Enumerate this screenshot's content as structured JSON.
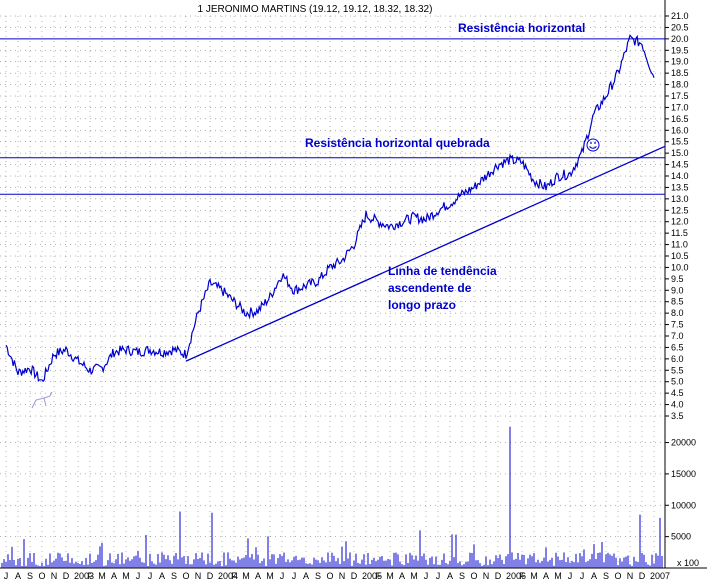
{
  "chart_data": {
    "type": "line",
    "title": "1 JERONIMO MARTINS (19.12, 19.12, 18.32, 18.32)",
    "colors": {
      "price": "#0000cc",
      "lines": "#0000cc",
      "volume": "#0000cc",
      "grid": "#000000"
    },
    "ylim": [
      3.5,
      21.0
    ],
    "y_ticks": [
      "3.5",
      "4.0",
      "4.5",
      "5.0",
      "5.5",
      "6.0",
      "6.5",
      "7.0",
      "7.5",
      "8.0",
      "8.5",
      "9.0",
      "9.5",
      "10.0",
      "10.5",
      "11.0",
      "11.5",
      "12.0",
      "12.5",
      "13.0",
      "13.5",
      "14.0",
      "14.5",
      "15.0",
      "15.5",
      "16.0",
      "16.5",
      "17.0",
      "17.5",
      "18.0",
      "18.5",
      "19.0",
      "19.5",
      "20.0",
      "20.5",
      "21.0"
    ],
    "volume_ticks": [
      "5000",
      "10000",
      "15000",
      "20000"
    ],
    "volume_unit_label": "x 100",
    "volume_ylim": [
      0,
      22000
    ],
    "x_labels": [
      "J",
      "A",
      "S",
      "O",
      "N",
      "D",
      "2003",
      "F",
      "M",
      "A",
      "M",
      "J",
      "J",
      "A",
      "S",
      "O",
      "N",
      "D",
      "2004",
      "F",
      "M",
      "A",
      "M",
      "J",
      "J",
      "A",
      "S",
      "O",
      "N",
      "D",
      "2005",
      "F",
      "M",
      "A",
      "M",
      "J",
      "J",
      "A",
      "S",
      "O",
      "N",
      "D",
      "2006",
      "F",
      "M",
      "A",
      "M",
      "J",
      "J",
      "A",
      "S",
      "O",
      "N",
      "D",
      "2007"
    ],
    "price_series": [
      [
        "2002-07",
        6.6
      ],
      [
        "2002-08",
        5.4
      ],
      [
        "2002-09",
        5.6
      ],
      [
        "2002-10",
        5.0
      ],
      [
        "2002-11",
        6.2
      ],
      [
        "2002-12",
        6.4
      ],
      [
        "2003-01",
        5.9
      ],
      [
        "2003-02",
        5.5
      ],
      [
        "2003-03",
        5.6
      ],
      [
        "2003-04",
        6.3
      ],
      [
        "2003-05",
        6.4
      ],
      [
        "2003-06",
        6.3
      ],
      [
        "2003-07",
        6.4
      ],
      [
        "2003-08",
        6.3
      ],
      [
        "2003-09",
        6.4
      ],
      [
        "2003-10",
        6.2
      ],
      [
        "2003-11",
        8.0
      ],
      [
        "2003-12",
        9.3
      ],
      [
        "2004-01",
        9.0
      ],
      [
        "2004-02",
        8.5
      ],
      [
        "2004-03",
        8.0
      ],
      [
        "2004-04",
        8.1
      ],
      [
        "2004-05",
        8.7
      ],
      [
        "2004-06",
        9.7
      ],
      [
        "2004-07",
        9.0
      ],
      [
        "2004-08",
        9.2
      ],
      [
        "2004-09",
        9.4
      ],
      [
        "2004-10",
        10.0
      ],
      [
        "2004-11",
        10.3
      ],
      [
        "2004-12",
        11.0
      ],
      [
        "2005-01",
        12.3
      ],
      [
        "2005-02",
        12.0
      ],
      [
        "2005-03",
        11.8
      ],
      [
        "2005-04",
        12.0
      ],
      [
        "2005-05",
        12.2
      ],
      [
        "2005-06",
        12.1
      ],
      [
        "2005-07",
        12.5
      ],
      [
        "2005-08",
        12.8
      ],
      [
        "2005-09",
        13.2
      ],
      [
        "2005-10",
        13.5
      ],
      [
        "2005-11",
        14.0
      ],
      [
        "2005-12",
        14.5
      ],
      [
        "2006-01",
        14.7
      ],
      [
        "2006-02",
        14.6
      ],
      [
        "2006-03",
        13.8
      ],
      [
        "2006-04",
        13.5
      ],
      [
        "2006-05",
        14.0
      ],
      [
        "2006-06",
        14.1
      ],
      [
        "2006-07",
        15.0
      ],
      [
        "2006-08",
        16.7
      ],
      [
        "2006-09",
        17.5
      ],
      [
        "2006-10",
        18.5
      ],
      [
        "2006-11",
        20.0
      ],
      [
        "2006-12",
        19.8
      ],
      [
        "2007-01",
        18.3
      ]
    ],
    "annotations": {
      "resistance_top": {
        "label": "Resistência horizontal",
        "value": 20.0
      },
      "resistance_broken": {
        "label": "Resistência horizontal quebrada",
        "value": 14.8
      },
      "support_line": {
        "value": 13.2
      },
      "trendline": {
        "label_lines": [
          "Linha de tendência",
          "ascendente de",
          "longo prazo"
        ],
        "from": [
          "2003-10",
          5.9
        ],
        "to": [
          "2007-02",
          15.3
        ]
      }
    }
  }
}
